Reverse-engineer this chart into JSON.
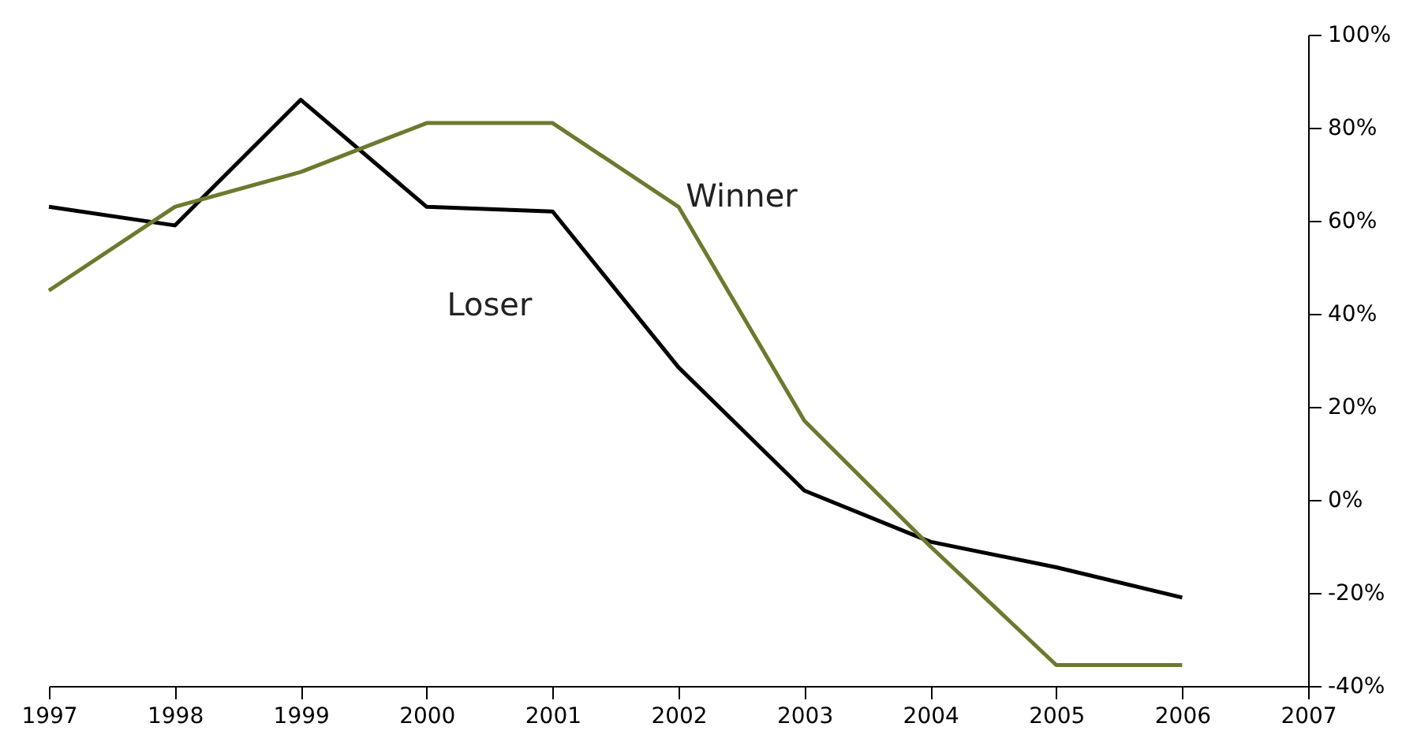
{
  "chart_data": {
    "type": "line",
    "x": [
      1997,
      1998,
      1999,
      2000,
      2001,
      2002,
      2003,
      2004,
      2005,
      2006
    ],
    "series": [
      {
        "name": "Loser",
        "color": "#000000",
        "values": [
          63,
          59,
          86,
          63,
          62,
          28.5,
          2,
          -9,
          -14.5,
          -21
        ]
      },
      {
        "name": "Winner",
        "color": "#6b7a2e",
        "values": [
          45,
          63,
          70.5,
          81,
          81,
          63,
          17,
          -10,
          -35.5,
          -35.5
        ]
      }
    ],
    "xlim": [
      1997,
      2007
    ],
    "xticks": [
      1997,
      1998,
      1999,
      2000,
      2001,
      2002,
      2003,
      2004,
      2005,
      2006,
      2007
    ],
    "ylim": [
      -40,
      100
    ],
    "yticks": [
      {
        "value": -40,
        "label": "-40%"
      },
      {
        "value": -20,
        "label": "-20%"
      },
      {
        "value": 0,
        "label": "0%"
      },
      {
        "value": 20,
        "label": "20%"
      },
      {
        "value": 40,
        "label": "40%"
      },
      {
        "value": 60,
        "label": "60%"
      },
      {
        "value": 80,
        "label": "80%"
      },
      {
        "value": 100,
        "label": "100%"
      }
    ],
    "grid": false,
    "marker": "none",
    "line_style": "solid"
  }
}
